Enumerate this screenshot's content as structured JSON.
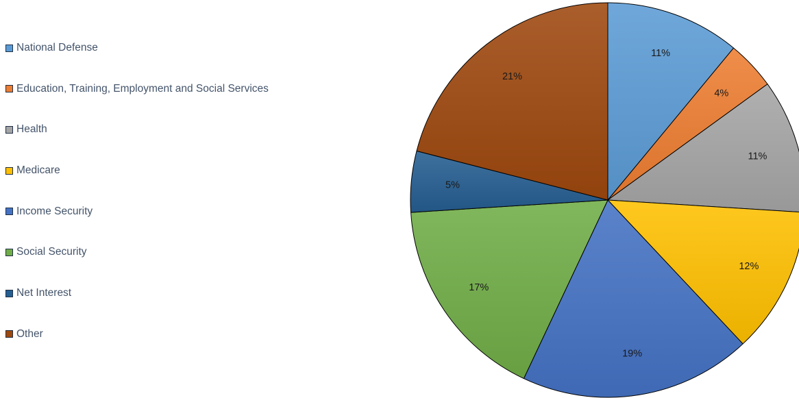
{
  "chart_data": {
    "type": "pie",
    "title": "",
    "legend_position": "left",
    "categories": [
      "National Defense",
      "Education, Training, Employment and Social Services",
      "Health",
      "Medicare",
      "Income Security",
      "Social Security",
      "Net Interest",
      "Other"
    ],
    "values": [
      11,
      4,
      11,
      12,
      19,
      17,
      5,
      21
    ],
    "data_labels": [
      "11%",
      "4%",
      "11%",
      "12%",
      "19%",
      "17%",
      "5%",
      "21%"
    ],
    "colors": [
      "#5b9bd5",
      "#ed7d31",
      "#a5a5a5",
      "#ffc000",
      "#4472c4",
      "#70ad47",
      "#255e91",
      "#9e480e"
    ]
  }
}
